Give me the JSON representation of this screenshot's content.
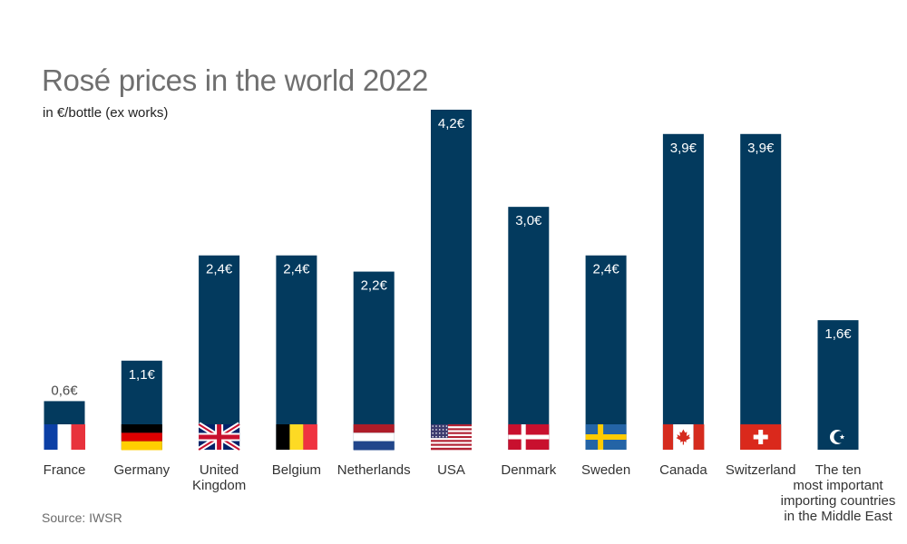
{
  "chart_data": {
    "type": "bar",
    "title": "Rosé prices in the world 2022",
    "subtitle": "in €/bottle (ex works)",
    "categories": [
      "France",
      "Germany",
      "United Kingdom",
      "Belgium",
      "Netherlands",
      "USA",
      "Denmark",
      "Sweden",
      "Canada",
      "Switzerland",
      "The ten most important importing countries in the Middle East"
    ],
    "category_lines": [
      [
        "France"
      ],
      [
        "Germany"
      ],
      [
        "United",
        "Kingdom"
      ],
      [
        "Belgium"
      ],
      [
        "Netherlands"
      ],
      [
        "USA"
      ],
      [
        "Denmark"
      ],
      [
        "Sweden"
      ],
      [
        "Canada"
      ],
      [
        "Switzerland"
      ],
      [
        "The ten",
        "most important",
        "importing countries",
        "in the Middle East"
      ]
    ],
    "values": [
      0.6,
      1.1,
      2.4,
      2.4,
      2.2,
      4.2,
      3.0,
      2.4,
      3.9,
      3.9,
      1.6
    ],
    "value_labels": [
      "0,6€",
      "1,1€",
      "2,4€",
      "2,4€",
      "2,2€",
      "4,2€",
      "3,0€",
      "2,4€",
      "3,9€",
      "3,9€",
      "1,6€"
    ],
    "flags": [
      "flag-france",
      "flag-germany",
      "flag-uk",
      "flag-belgium",
      "flag-netherlands",
      "flag-usa",
      "flag-denmark",
      "flag-sweden",
      "flag-canada",
      "flag-switzerland",
      "crescent-star-icon"
    ],
    "unit": "€/bottle",
    "xlabel": "",
    "ylabel": "",
    "ylim": [
      0,
      4.2
    ],
    "grid": false,
    "legend": "none",
    "bar_color": "#033a5e"
  },
  "source": "Source: IWSR"
}
